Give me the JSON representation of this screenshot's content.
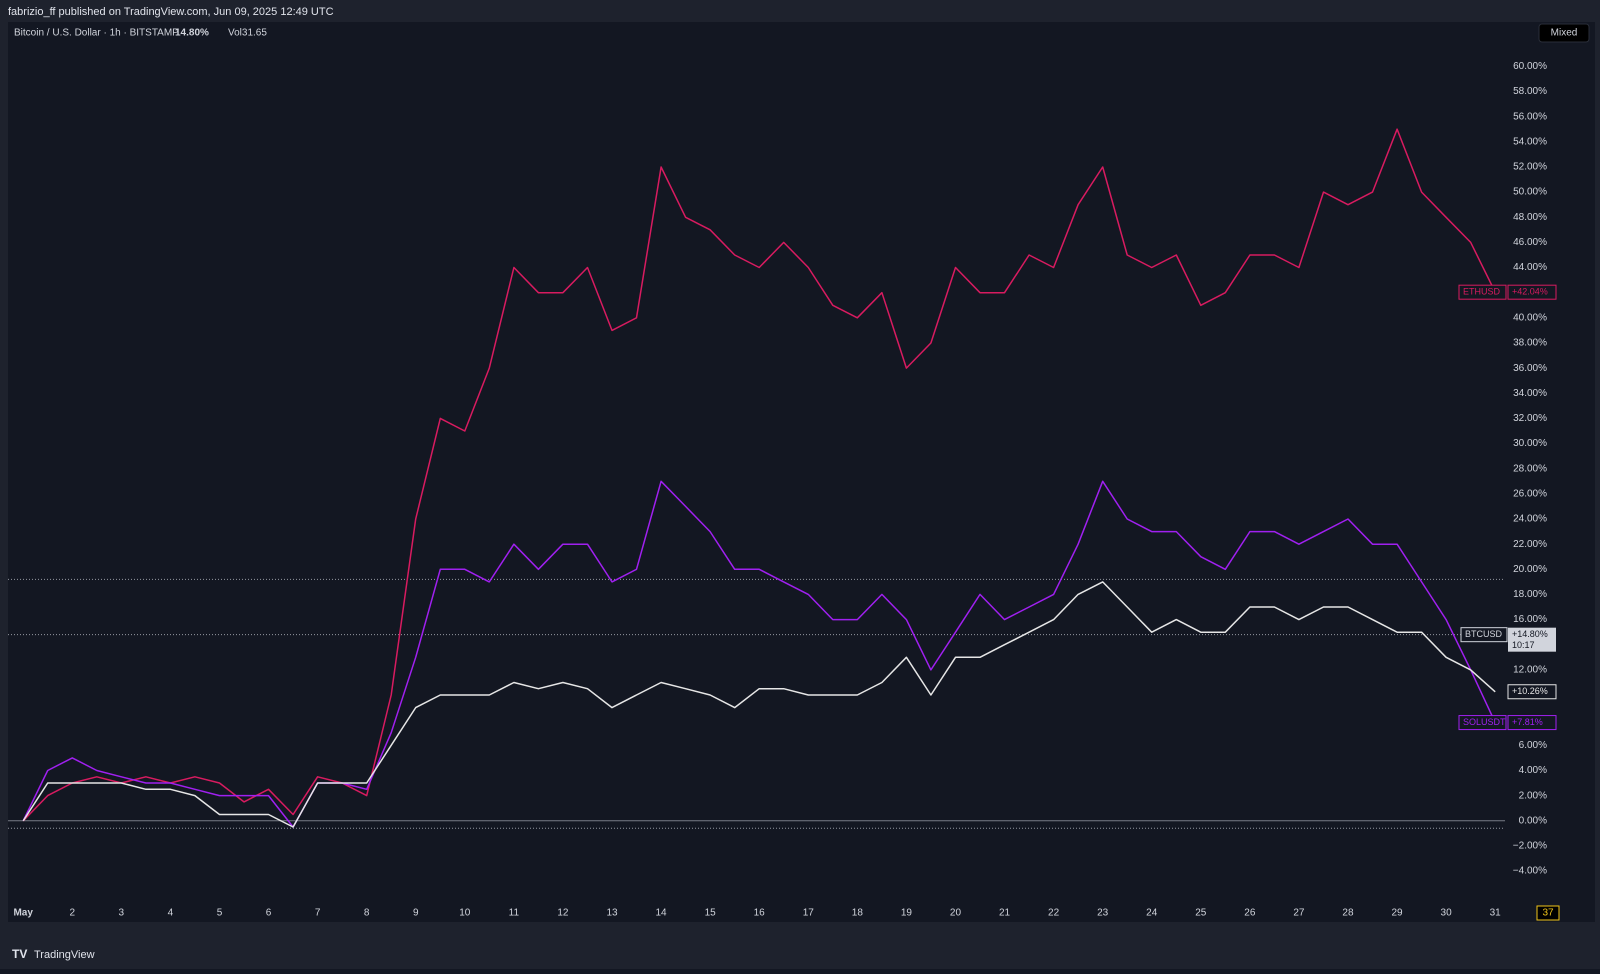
{
  "chart_data": {
    "type": "line",
    "publisher": "fabrizio_ff published on TradingView.com, Jun 09, 2025 12:49 UTC",
    "title": "Bitcoin / U.S. Dollar · 1h · BITSTAMP",
    "title_change": "14.80%",
    "volume": "Vol31.65",
    "button": "Mixed",
    "footer": "TradingView",
    "badge": "37",
    "x": [
      1,
      1.5,
      2,
      2.5,
      3,
      3.5,
      4,
      4.5,
      5,
      5.5,
      6,
      6.5,
      7,
      7.5,
      8,
      8.5,
      9,
      9.5,
      10,
      10.5,
      11,
      11.5,
      12,
      12.5,
      13,
      13.5,
      14,
      14.5,
      15,
      15.5,
      16,
      16.5,
      17,
      17.5,
      18,
      18.5,
      19,
      19.5,
      20,
      20.5,
      21,
      21.5,
      22,
      22.5,
      23,
      23.5,
      24,
      24.5,
      25,
      25.5,
      26,
      26.5,
      27,
      27.5,
      28,
      28.5,
      29,
      29.5,
      30,
      30.5,
      31
    ],
    "xlim": [
      0.69,
      31.2
    ],
    "xticks": [
      {
        "value": 1,
        "label": "May"
      },
      2,
      3,
      4,
      5,
      6,
      7,
      8,
      9,
      10,
      11,
      12,
      13,
      14,
      15,
      16,
      17,
      18,
      19,
      20,
      21,
      22,
      23,
      24,
      25,
      26,
      27,
      28,
      29,
      30,
      31
    ],
    "ylim": [
      -6.7,
      61.7
    ],
    "yticks": [
      {
        "value": -4,
        "label": "−4.00%"
      },
      {
        "value": -2,
        "label": "−2.00%"
      },
      {
        "value": 0,
        "label": "0.00%"
      },
      {
        "value": 2,
        "label": "2.00%"
      },
      {
        "value": 4,
        "label": "4.00%"
      },
      {
        "value": 6,
        "label": "6.00%"
      },
      {
        "value": 8,
        "label": "8.00%"
      },
      {
        "value": 10,
        "label": "10.00%"
      },
      {
        "value": 12,
        "label": "12.00%"
      },
      {
        "value": 14,
        "label": "14.00%"
      },
      {
        "value": 16,
        "label": "16.00%"
      },
      {
        "value": 18,
        "label": "18.00%"
      },
      {
        "value": 20,
        "label": "20.00%"
      },
      {
        "value": 22,
        "label": "22.00%"
      },
      {
        "value": 24,
        "label": "24.00%"
      },
      {
        "value": 26,
        "label": "26.00%"
      },
      {
        "value": 28,
        "label": "28.00%"
      },
      {
        "value": 30,
        "label": "30.00%"
      },
      {
        "value": 32,
        "label": "32.00%"
      },
      {
        "value": 34,
        "label": "34.00%"
      },
      {
        "value": 36,
        "label": "36.00%"
      },
      {
        "value": 38,
        "label": "38.00%"
      },
      {
        "value": 40,
        "label": "40.00%"
      },
      {
        "value": 42,
        "label": "42.00%"
      },
      {
        "value": 44,
        "label": "44.00%"
      },
      {
        "value": 46,
        "label": "46.00%"
      },
      {
        "value": 48,
        "label": "48.00%"
      },
      {
        "value": 50,
        "label": "50.00%"
      },
      {
        "value": 52,
        "label": "52.00%"
      },
      {
        "value": 54,
        "label": "54.00%"
      },
      {
        "value": 56,
        "label": "56.00%"
      },
      {
        "value": 58,
        "label": "58.00%"
      },
      {
        "value": 60,
        "label": "60.00%"
      }
    ],
    "grid": false,
    "price_lines": [
      19.2,
      14.8,
      -0.6
    ],
    "series": [
      {
        "name": "ETHUSD",
        "color": "#d81b60",
        "last_label": "+42.04%",
        "values": [
          0,
          2,
          3,
          3.5,
          3,
          3.5,
          3,
          3.5,
          3,
          1.5,
          2.5,
          0.5,
          3.5,
          3,
          2,
          10,
          24,
          32,
          31,
          36,
          44,
          42,
          42,
          44,
          39,
          40,
          52,
          48,
          47,
          45,
          44,
          46,
          44,
          41,
          40,
          42,
          36,
          38,
          44,
          42,
          42,
          45,
          44,
          49,
          52,
          45,
          44,
          45,
          41,
          42,
          45,
          45,
          44,
          50,
          49,
          50,
          55,
          50,
          48,
          46,
          42.04
        ]
      },
      {
        "name": "SOLUSDT",
        "color": "#a020f0",
        "last_label": "+7.81%",
        "values": [
          0,
          4,
          5,
          4,
          3.5,
          3,
          3,
          2.5,
          2,
          2,
          2,
          -0.5,
          3,
          3,
          2.5,
          7,
          13,
          20,
          20,
          19,
          22,
          20,
          22,
          22,
          19,
          20,
          27,
          25,
          23,
          20,
          20,
          19,
          18,
          16,
          16,
          18,
          16,
          12,
          15,
          18,
          16,
          17,
          18,
          22,
          27,
          24,
          23,
          23,
          21,
          20,
          23,
          23,
          22,
          23,
          24,
          22,
          22,
          19,
          16,
          12,
          7.81
        ]
      },
      {
        "color": "#e6e6e6",
        "last_label": "+10.26%",
        "values": [
          0,
          3,
          3,
          3,
          3,
          2.5,
          2.5,
          2,
          0.5,
          0.5,
          0.5,
          -0.5,
          3,
          3,
          3,
          6,
          9,
          10,
          10,
          10,
          11,
          10.5,
          11,
          10.5,
          9,
          10,
          11,
          10.5,
          10,
          9,
          10.5,
          10.5,
          10,
          10,
          10,
          11,
          13,
          10,
          13,
          13,
          14,
          15,
          16,
          18,
          19,
          17,
          15,
          16,
          15,
          15,
          17,
          17,
          16,
          17,
          17,
          16,
          15,
          15,
          13,
          12,
          10.26
        ]
      }
    ],
    "price_tag": {
      "name": "BTCUSD",
      "value": 14.8,
      "label": "+14.80%",
      "countdown": "10:17"
    }
  }
}
